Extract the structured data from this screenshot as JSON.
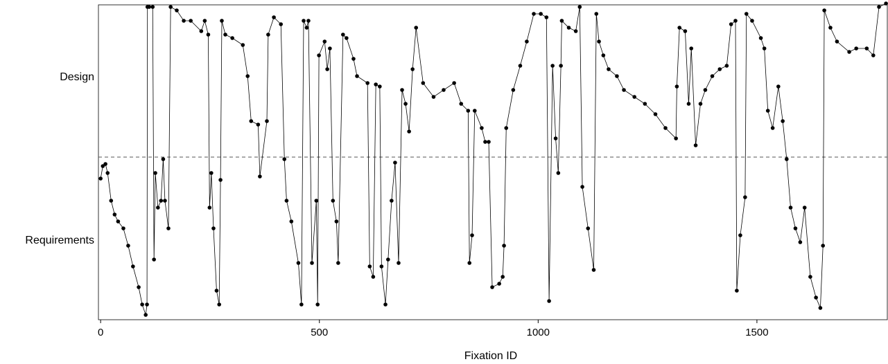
{
  "chart_data": {
    "type": "line",
    "xlabel": "Fixation ID",
    "xlim": [
      -5,
      1798
    ],
    "xticks": [
      0,
      500,
      1000,
      1500
    ],
    "ylim": [
      0,
      455
    ],
    "yticks": [
      {
        "value": 350,
        "label": "Design"
      },
      {
        "value": 114,
        "label": "Requirements"
      }
    ],
    "divider": 235,
    "color": "#000000",
    "x": [
      0,
      5,
      11,
      16,
      24,
      32,
      40,
      52,
      63,
      74,
      87,
      95,
      103,
      106,
      107,
      111,
      119,
      122,
      125,
      131,
      138,
      143,
      147,
      155,
      160,
      174,
      190,
      206,
      230,
      238,
      246,
      249,
      253,
      258,
      265,
      271,
      274,
      277,
      285,
      301,
      325,
      336,
      344,
      360,
      364,
      380,
      383,
      396,
      412,
      420,
      425,
      436,
      452,
      459,
      464,
      471,
      475,
      483,
      493,
      496,
      499,
      512,
      518,
      524,
      531,
      539,
      543,
      554,
      562,
      578,
      586,
      610,
      615,
      623,
      629,
      638,
      642,
      651,
      657,
      665,
      673,
      681,
      689,
      697,
      705,
      713,
      721,
      737,
      761,
      784,
      808,
      824,
      840,
      843,
      849,
      855,
      871,
      879,
      887,
      895,
      911,
      919,
      922,
      927,
      943,
      959,
      974,
      990,
      1006,
      1019,
      1025,
      1033,
      1040,
      1046,
      1052,
      1054,
      1070,
      1086,
      1095,
      1101,
      1114,
      1127,
      1133,
      1139,
      1149,
      1161,
      1180,
      1196,
      1220,
      1244,
      1268,
      1291,
      1315,
      1317,
      1323,
      1336,
      1344,
      1350,
      1360,
      1371,
      1382,
      1398,
      1415,
      1431,
      1441,
      1451,
      1454,
      1462,
      1473,
      1476,
      1489,
      1509,
      1517,
      1525,
      1536,
      1549,
      1559,
      1568,
      1577,
      1588,
      1599,
      1609,
      1622,
      1635,
      1645,
      1651,
      1654,
      1668,
      1683,
      1711,
      1727,
      1751,
      1766,
      1779,
      1795
    ],
    "values": [
      204,
      222,
      225,
      212,
      172,
      152,
      142,
      132,
      107,
      77,
      47,
      22,
      7,
      22,
      452,
      452,
      452,
      87,
      212,
      162,
      172,
      232,
      172,
      132,
      452,
      447,
      432,
      432,
      417,
      432,
      412,
      162,
      212,
      132,
      42,
      22,
      202,
      432,
      412,
      407,
      397,
      352,
      287,
      282,
      207,
      287,
      412,
      437,
      427,
      232,
      172,
      142,
      82,
      22,
      432,
      422,
      432,
      82,
      172,
      22,
      382,
      402,
      362,
      392,
      172,
      142,
      82,
      412,
      407,
      377,
      352,
      342,
      77,
      62,
      340,
      337,
      77,
      22,
      87,
      172,
      227,
      82,
      332,
      312,
      272,
      362,
      422,
      342,
      322,
      332,
      342,
      312,
      302,
      82,
      122,
      302,
      277,
      257,
      257,
      47,
      52,
      62,
      107,
      277,
      332,
      367,
      402,
      442,
      442,
      437,
      27,
      367,
      262,
      212,
      367,
      432,
      422,
      417,
      452,
      192,
      132,
      72,
      442,
      402,
      382,
      362,
      352,
      332,
      322,
      312,
      297,
      277,
      262,
      337,
      422,
      417,
      312,
      392,
      252,
      312,
      332,
      352,
      362,
      367,
      427,
      432,
      42,
      122,
      177,
      442,
      432,
      407,
      392,
      302,
      277,
      337,
      287,
      232,
      162,
      132,
      112,
      162,
      62,
      32,
      17,
      107,
      447,
      422,
      402,
      387,
      392,
      392,
      382,
      452,
      457
    ]
  }
}
